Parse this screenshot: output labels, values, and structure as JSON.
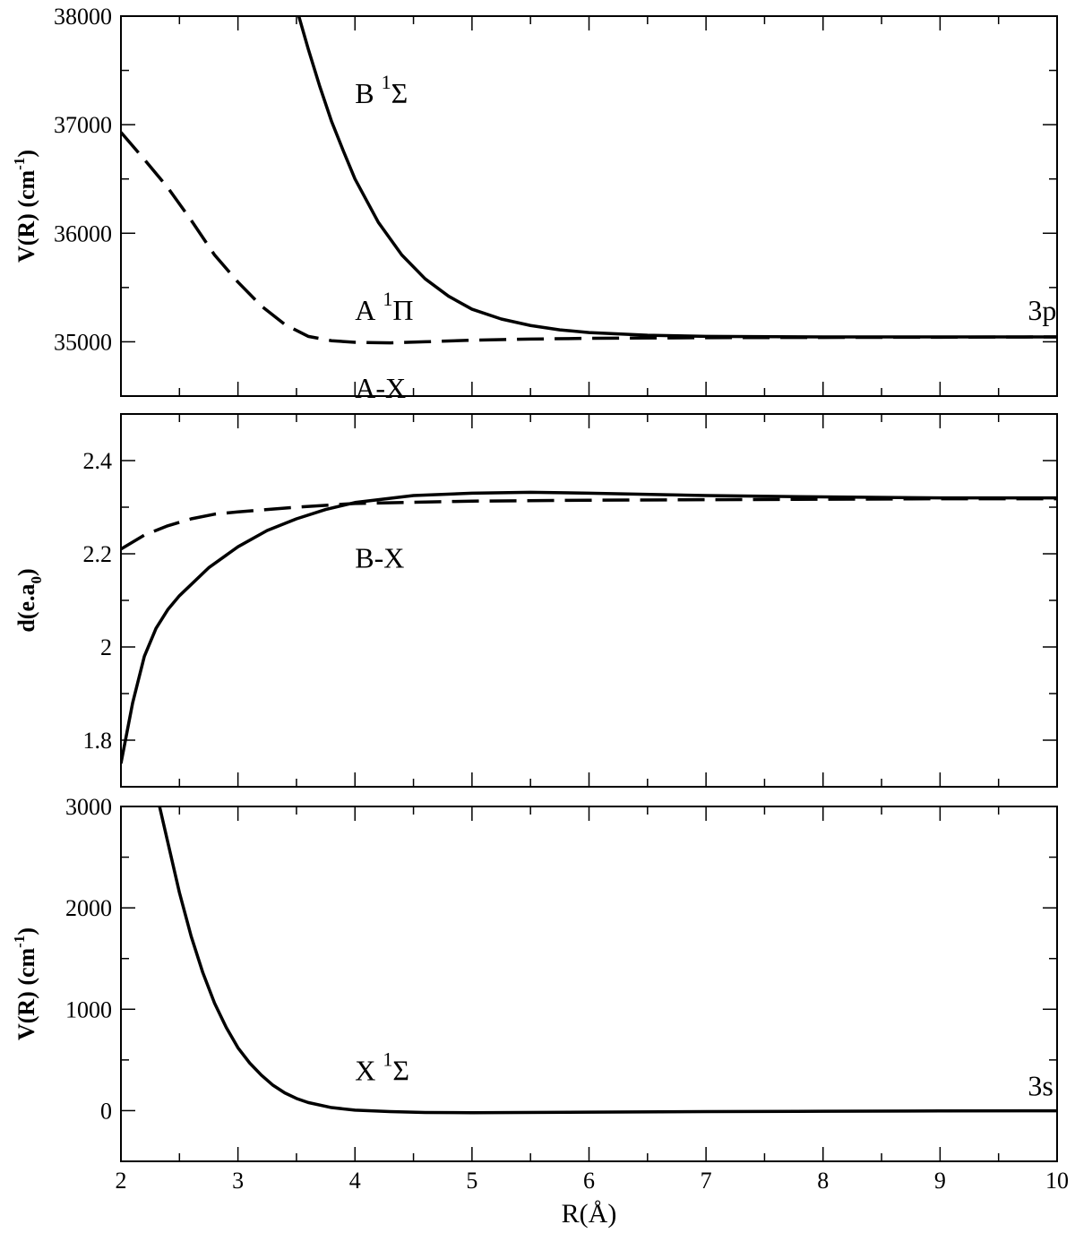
{
  "chart_data": [
    {
      "type": "line",
      "panel": "top",
      "xlim": [
        2,
        10
      ],
      "ylim": [
        34500,
        38000
      ],
      "x_ticks": [
        2,
        3,
        4,
        5,
        6,
        7,
        8,
        9,
        10
      ],
      "y_ticks": [
        35000,
        36000,
        37000,
        38000
      ],
      "y_tick_labels": [
        "35000",
        "36000",
        "37000",
        "38000"
      ],
      "ylabel_main": "V(R) (cm",
      "ylabel_sup": "-1",
      "ylabel_end": ")",
      "annotations": [
        {
          "main": "B",
          "sup": "1",
          "sym": "Σ",
          "x": 4.0,
          "y": 37200
        },
        {
          "main": "A",
          "sup": "1",
          "sym": "Π",
          "x": 4.0,
          "y": 35200
        },
        {
          "main": "3p",
          "sup": "",
          "sym": "",
          "x": 9.75,
          "y": 35200
        }
      ],
      "series": [
        {
          "style": "solid",
          "points": [
            [
              3.52,
              38000
            ],
            [
              3.6,
              37700
            ],
            [
              3.7,
              37350
            ],
            [
              3.8,
              37030
            ],
            [
              3.9,
              36760
            ],
            [
              4.0,
              36500
            ],
            [
              4.2,
              36100
            ],
            [
              4.4,
              35800
            ],
            [
              4.6,
              35580
            ],
            [
              4.8,
              35420
            ],
            [
              5.0,
              35300
            ],
            [
              5.25,
              35210
            ],
            [
              5.5,
              35150
            ],
            [
              5.75,
              35110
            ],
            [
              6.0,
              35085
            ],
            [
              6.5,
              35060
            ],
            [
              7.0,
              35050
            ],
            [
              8.0,
              35045
            ],
            [
              9.0,
              35045
            ],
            [
              10.0,
              35045
            ]
          ]
        },
        {
          "style": "dashed",
          "points": [
            [
              2.0,
              36930
            ],
            [
              2.2,
              36680
            ],
            [
              2.4,
              36420
            ],
            [
              2.6,
              36120
            ],
            [
              2.8,
              35800
            ],
            [
              3.0,
              35550
            ],
            [
              3.2,
              35330
            ],
            [
              3.4,
              35160
            ],
            [
              3.6,
              35050
            ],
            [
              3.8,
              35010
            ],
            [
              4.0,
              34995
            ],
            [
              4.3,
              34990
            ],
            [
              4.6,
              35000
            ],
            [
              5.0,
              35015
            ],
            [
              5.5,
              35025
            ],
            [
              6.0,
              35032
            ],
            [
              7.0,
              35038
            ],
            [
              8.0,
              35040
            ],
            [
              9.0,
              35042
            ],
            [
              10.0,
              35045
            ]
          ]
        }
      ]
    },
    {
      "type": "line",
      "panel": "middle",
      "xlim": [
        2,
        10
      ],
      "ylim": [
        1.7,
        2.5
      ],
      "x_ticks": [
        2,
        3,
        4,
        5,
        6,
        7,
        8,
        9,
        10
      ],
      "y_ticks": [
        1.8,
        2.0,
        2.2,
        2.4
      ],
      "y_tick_labels": [
        "1.8",
        "2",
        "2.2",
        "2.4"
      ],
      "ylabel_main": "d(e.a",
      "ylabel_sub": "0",
      "ylabel_end": ")",
      "annotations": [
        {
          "main": "A-X",
          "sup": "",
          "sym": "",
          "x": 4.0,
          "y": 2.535
        },
        {
          "main": "B-X",
          "sup": "",
          "sym": "",
          "x": 4.0,
          "y": 2.17
        }
      ],
      "series": [
        {
          "name": "A-X",
          "style": "dashed",
          "points": [
            [
              2.0,
              2.21
            ],
            [
              2.2,
              2.24
            ],
            [
              2.4,
              2.26
            ],
            [
              2.6,
              2.275
            ],
            [
              2.8,
              2.285
            ],
            [
              3.0,
              2.29
            ],
            [
              3.5,
              2.3
            ],
            [
              4.0,
              2.308
            ],
            [
              5.0,
              2.313
            ],
            [
              6.0,
              2.315
            ],
            [
              7.0,
              2.316
            ],
            [
              8.0,
              2.317
            ],
            [
              9.0,
              2.318
            ],
            [
              10.0,
              2.318
            ]
          ]
        },
        {
          "name": "B-X",
          "style": "solid",
          "points": [
            [
              2.0,
              1.75
            ],
            [
              2.1,
              1.88
            ],
            [
              2.2,
              1.98
            ],
            [
              2.3,
              2.04
            ],
            [
              2.4,
              2.08
            ],
            [
              2.5,
              2.11
            ],
            [
              2.75,
              2.17
            ],
            [
              3.0,
              2.215
            ],
            [
              3.25,
              2.25
            ],
            [
              3.5,
              2.275
            ],
            [
              3.75,
              2.295
            ],
            [
              4.0,
              2.31
            ],
            [
              4.5,
              2.325
            ],
            [
              5.0,
              2.33
            ],
            [
              5.5,
              2.332
            ],
            [
              6.0,
              2.33
            ],
            [
              7.0,
              2.325
            ],
            [
              8.0,
              2.322
            ],
            [
              9.0,
              2.32
            ],
            [
              10.0,
              2.32
            ]
          ]
        }
      ]
    },
    {
      "type": "line",
      "panel": "bottom",
      "xlim": [
        2,
        10
      ],
      "ylim": [
        -500,
        3000
      ],
      "x_ticks": [
        2,
        3,
        4,
        5,
        6,
        7,
        8,
        9,
        10
      ],
      "x_tick_labels": [
        "2",
        "3",
        "4",
        "5",
        "6",
        "7",
        "8",
        "9",
        "10"
      ],
      "y_ticks": [
        0,
        1000,
        2000,
        3000
      ],
      "y_tick_labels": [
        "0",
        "1000",
        "2000",
        "3000"
      ],
      "xlabel": "R(Å)",
      "ylabel_main": "V(R) (cm",
      "ylabel_sup": "-1",
      "ylabel_end": ")",
      "annotations": [
        {
          "main": "X",
          "sup": "1",
          "sym": "Σ",
          "x": 4.0,
          "y": 300
        },
        {
          "main": "3s",
          "sup": "",
          "sym": "",
          "x": 9.75,
          "y": 150
        }
      ],
      "series": [
        {
          "style": "solid",
          "points": [
            [
              2.33,
              3000
            ],
            [
              2.4,
              2650
            ],
            [
              2.5,
              2150
            ],
            [
              2.6,
              1720
            ],
            [
              2.7,
              1360
            ],
            [
              2.8,
              1060
            ],
            [
              2.9,
              820
            ],
            [
              3.0,
              620
            ],
            [
              3.1,
              470
            ],
            [
              3.2,
              350
            ],
            [
              3.3,
              250
            ],
            [
              3.4,
              175
            ],
            [
              3.5,
              120
            ],
            [
              3.6,
              80
            ],
            [
              3.8,
              30
            ],
            [
              4.0,
              5
            ],
            [
              4.3,
              -10
            ],
            [
              4.6,
              -18
            ],
            [
              5.0,
              -20
            ],
            [
              6.0,
              -15
            ],
            [
              7.0,
              -10
            ],
            [
              8.0,
              -6
            ],
            [
              9.0,
              -3
            ],
            [
              10.0,
              -2
            ]
          ]
        }
      ]
    }
  ]
}
